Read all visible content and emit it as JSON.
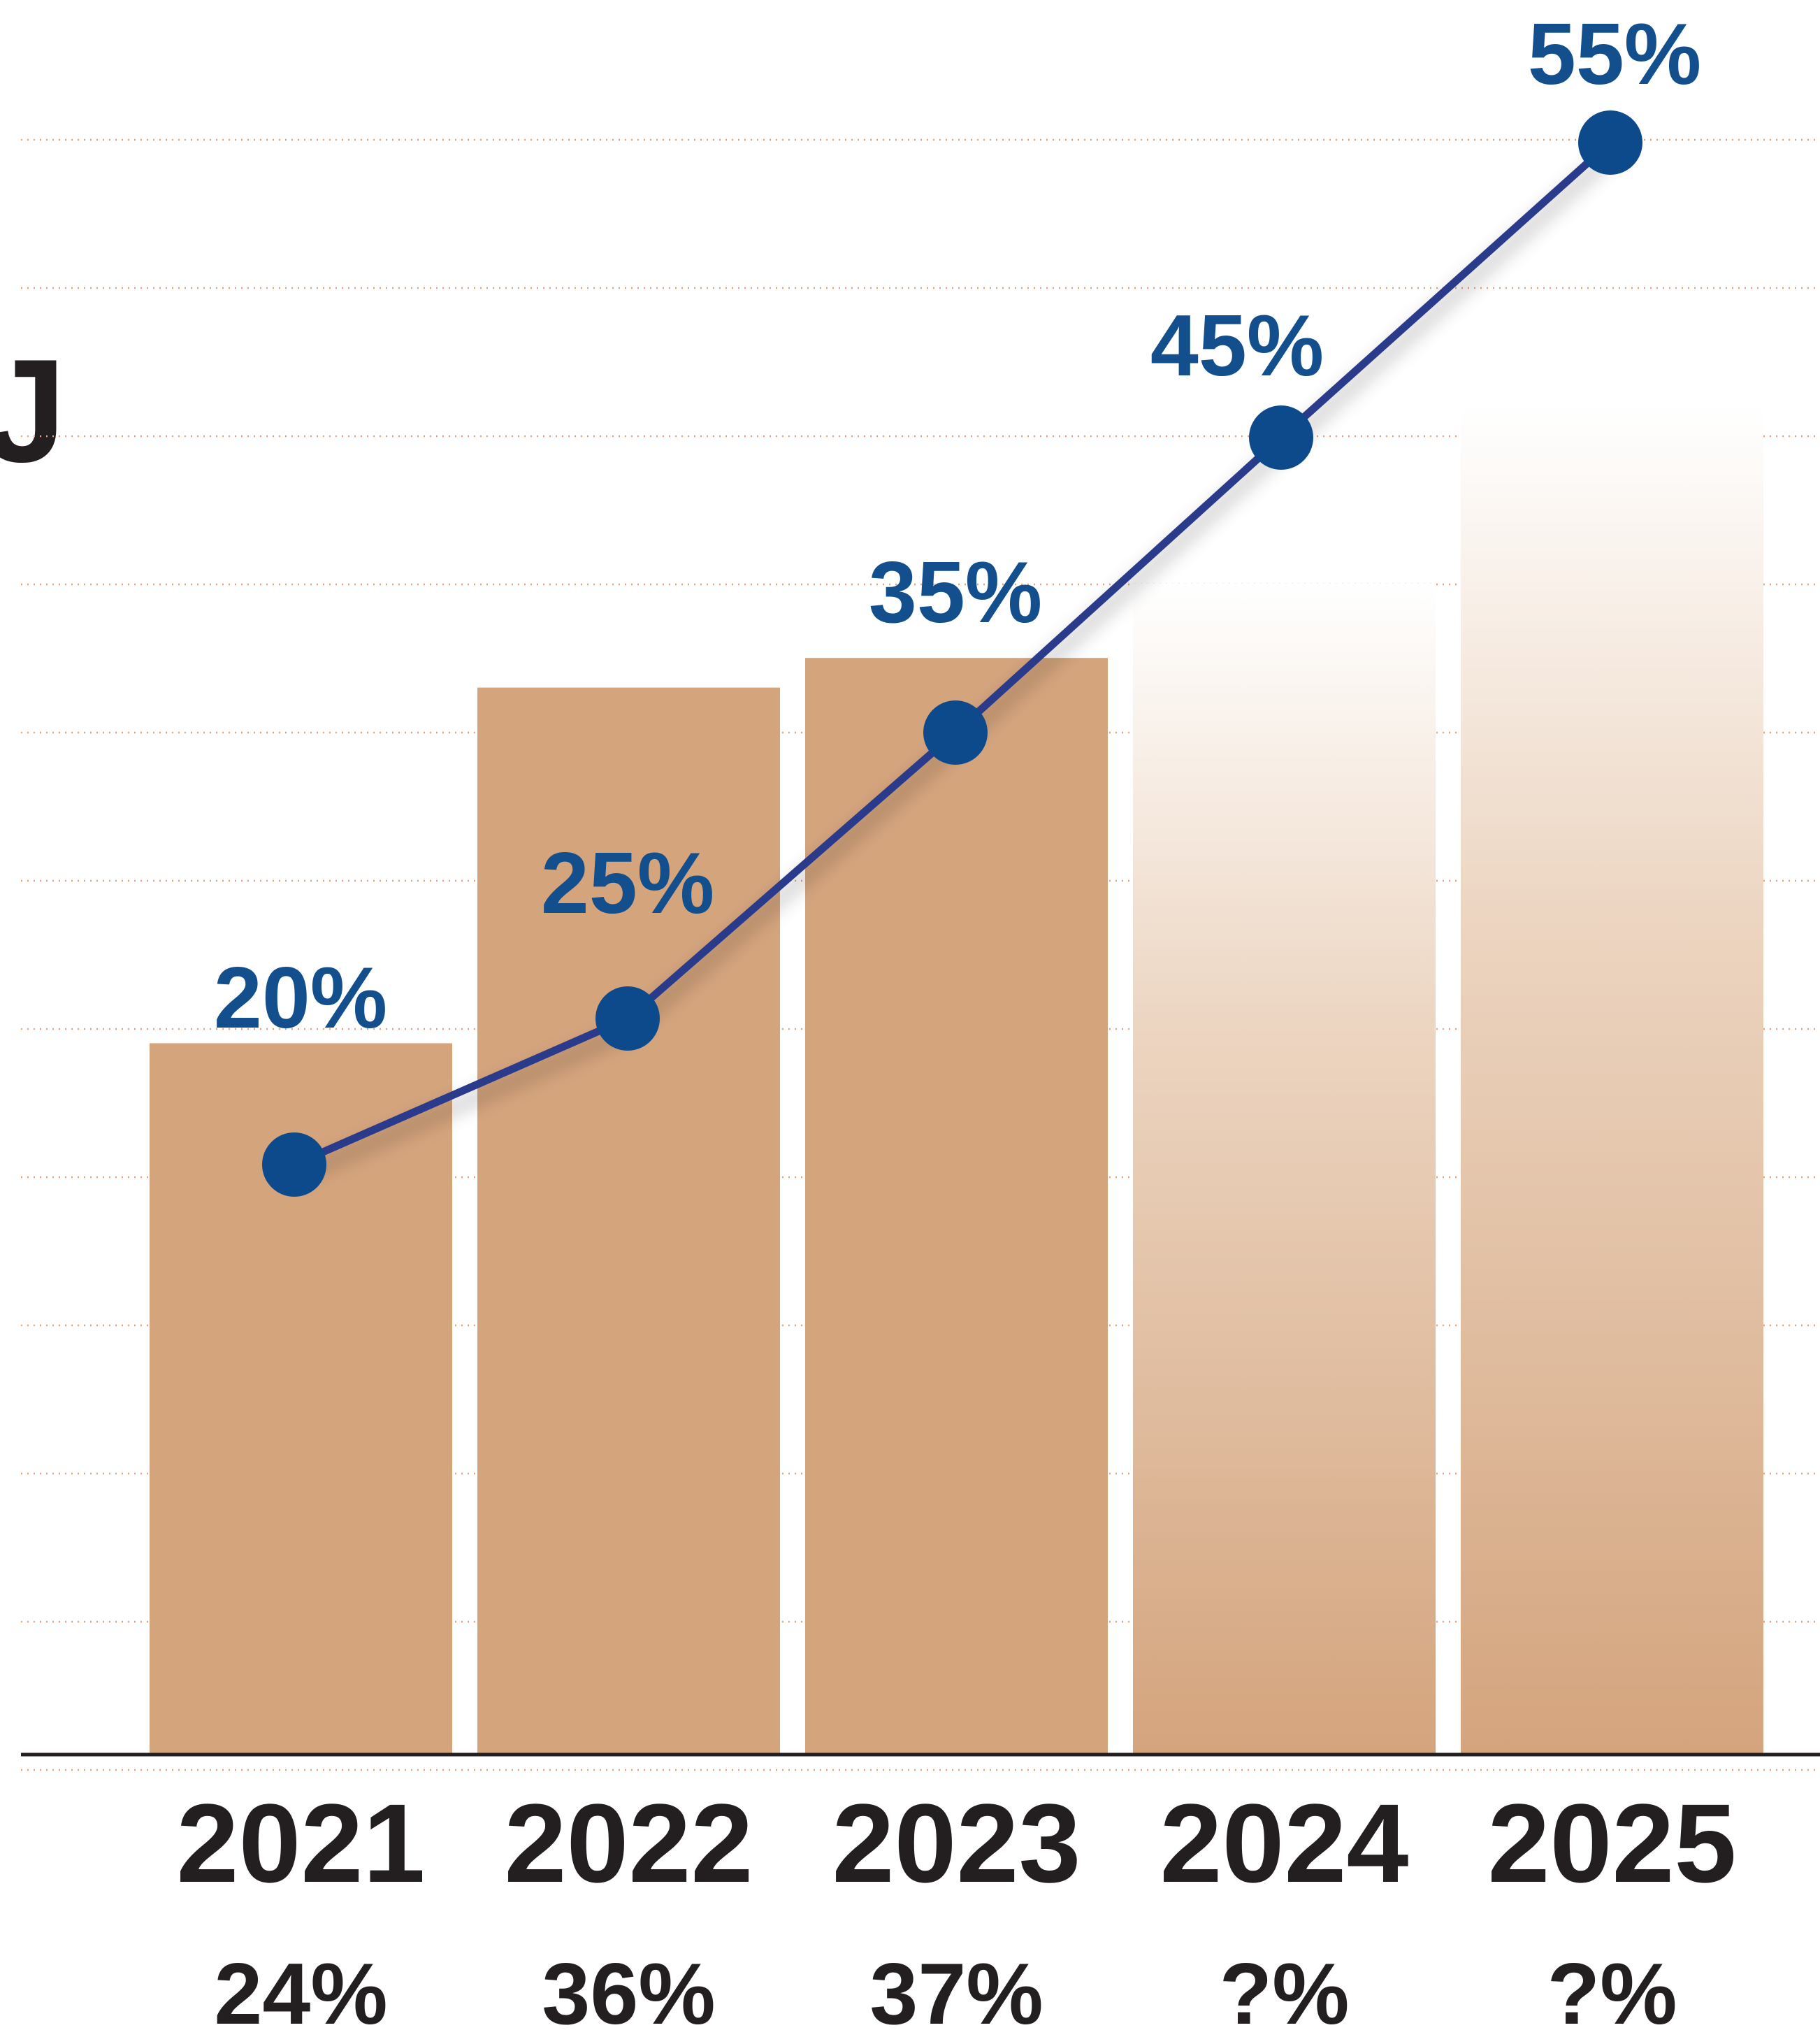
{
  "partial_title": "J",
  "colors": {
    "bar": "#d4a47d",
    "line": "#2b3b8c",
    "marker": "#0d4a8c",
    "point_label": "#124f8c",
    "text": "#231f20",
    "grid": "#e8a27a",
    "axis": "#231f20"
  },
  "chart_data": {
    "type": "bar",
    "categories": [
      "2021",
      "2022",
      "2023",
      "2024",
      "2025"
    ],
    "series": [
      {
        "name": "",
        "type": "bar",
        "values": [
          24,
          36,
          37,
          null,
          null
        ],
        "labels": [
          "24%",
          "36%",
          "37%",
          "?%",
          "?%"
        ],
        "projected_fade": [
          false,
          false,
          false,
          true,
          true
        ]
      },
      {
        "name": "",
        "type": "line",
        "values": [
          20,
          25,
          35,
          45,
          55
        ],
        "labels": [
          "20%",
          "25%",
          "35%",
          "45%",
          "55%"
        ]
      }
    ],
    "ylim": [
      0,
      60
    ],
    "grid": true,
    "grid_style": "dotted",
    "xlabel": "",
    "ylabel": ""
  }
}
